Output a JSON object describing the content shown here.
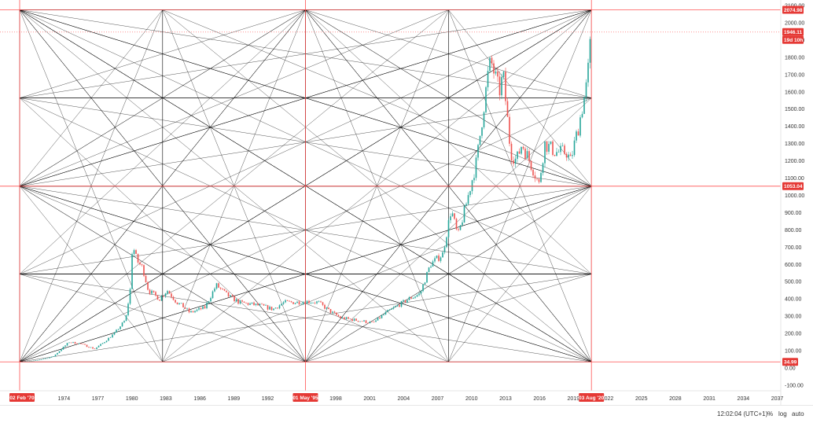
{
  "chart_data": {
    "type": "line",
    "title": "",
    "xlabel": "",
    "ylabel": "",
    "scale": "linear",
    "ylim": [
      -150,
      2150
    ],
    "xlim": [
      "1968-09",
      "2039-01"
    ],
    "y_ticks": [
      "-100.00",
      "0.00",
      "100.00",
      "200.00",
      "300.00",
      "400.00",
      "500.00",
      "600.00",
      "700.00",
      "800.00",
      "900.00",
      "1000.00",
      "1100.00",
      "1200.00",
      "1300.00",
      "1400.00",
      "1500.00",
      "1600.00",
      "1700.00",
      "1800.00",
      "1900.00",
      "2000.00",
      "2100.00"
    ],
    "x_ticks": [
      "1974",
      "1977",
      "1980",
      "1983",
      "1986",
      "1989",
      "1992",
      "1998",
      "2001",
      "2004",
      "2007",
      "2010",
      "2013",
      "2016",
      "2019",
      "2022",
      "2025",
      "2028",
      "2031",
      "2034",
      "2037"
    ],
    "series": [
      {
        "type": "candlestick-approx",
        "x": [
          "1970-02",
          "1971-06",
          "1973-01",
          "1974-06",
          "1975-06",
          "1976-09",
          "1977-06",
          "1978-06",
          "1979-06",
          "1979-12",
          "1980-01",
          "1980-06",
          "1980-12",
          "1981-06",
          "1982-06",
          "1983-02",
          "1983-12",
          "1984-06",
          "1985-02",
          "1986-06",
          "1987-06",
          "1988-06",
          "1989-06",
          "1990-06",
          "1991-06",
          "1992-06",
          "1993-06",
          "1994-06",
          "1995-06",
          "1996-06",
          "1997-06",
          "1998-06",
          "1999-06",
          "2000-06",
          "2001-04",
          "2002-06",
          "2003-06",
          "2004-06",
          "2005-06",
          "2006-05",
          "2007-06",
          "2008-03",
          "2008-10",
          "2009-06",
          "2010-06",
          "2011-06",
          "2011-09",
          "2012-06",
          "2012-10",
          "2013-06",
          "2013-12",
          "2014-06",
          "2015-06",
          "2015-12",
          "2016-06",
          "2017-06",
          "2018-06",
          "2018-09",
          "2019-06",
          "2020-03",
          "2020-08"
        ],
        "values": [
          35,
          42,
          65,
          150,
          140,
          110,
          145,
          200,
          280,
          500,
          720,
          620,
          580,
          450,
          400,
          450,
          380,
          360,
          320,
          350,
          480,
          420,
          380,
          370,
          360,
          340,
          380,
          380,
          385,
          380,
          330,
          290,
          280,
          270,
          260,
          320,
          360,
          400,
          430,
          600,
          660,
          920,
          760,
          930,
          1200,
          1700,
          1780,
          1600,
          1700,
          1250,
          1200,
          1300,
          1150,
          1060,
          1300,
          1250,
          1250,
          1190,
          1400,
          1650,
          1980
        ]
      }
    ],
    "annotations": [
      "2074.98",
      "1946.11",
      "19d 10h",
      "1053.04",
      "34.99",
      "02 Feb '70",
      "01 May '95",
      "03 Aug '20"
    ],
    "grid": false,
    "legend": "none"
  },
  "footer": {
    "time": "12:02:04 (UTC+1)",
    "percent": "%",
    "log": "log",
    "auto": "auto"
  },
  "colors": {
    "up": "#26a69a",
    "down": "#ef5350",
    "tag": "#e53935",
    "hline": "#ff5252",
    "fan": "#000000"
  }
}
